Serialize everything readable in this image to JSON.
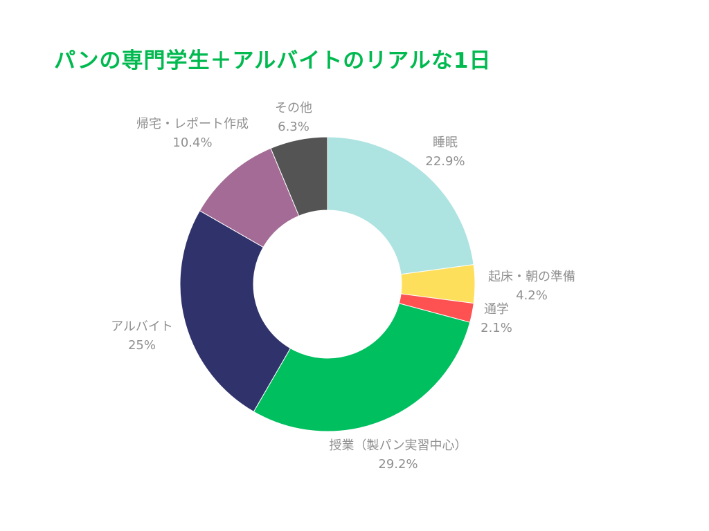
{
  "chart_data": {
    "type": "pie",
    "variant": "donut",
    "title": "パンの専門学生＋アルバイトのリアルな1日",
    "title_color": "#00b94f",
    "label_color": "#8f8f8f",
    "legend": "none",
    "slices": [
      {
        "label": "睡眠",
        "value": 22.9,
        "value_label": "22.9%",
        "color": "#ade3e1"
      },
      {
        "label": "起床・朝の準備",
        "value": 4.2,
        "value_label": "4.2%",
        "color": "#fedf5c"
      },
      {
        "label": "通学",
        "value": 2.1,
        "value_label": "2.1%",
        "color": "#fe5252"
      },
      {
        "label": "授業（製パン実習中心）",
        "value": 29.2,
        "value_label": "29.2%",
        "color": "#00bf5f"
      },
      {
        "label": "アルバイト",
        "value": 25,
        "value_label": "25%",
        "color": "#30336b"
      },
      {
        "label": "帰宅・レポート作成",
        "value": 10.4,
        "value_label": "10.4%",
        "color": "#a36b95"
      },
      {
        "label": "その他",
        "value": 6.3,
        "value_label": "6.3%",
        "color": "#545454"
      }
    ]
  }
}
